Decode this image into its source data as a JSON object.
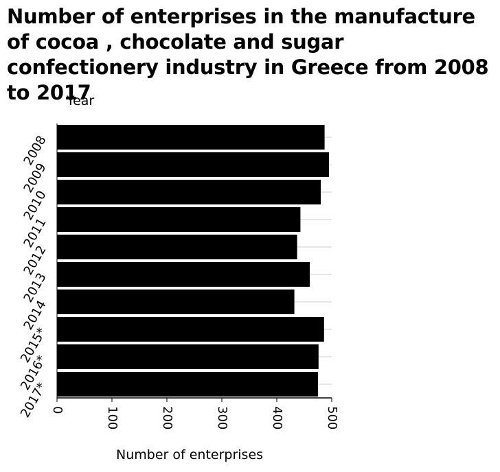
{
  "chart_data": {
    "type": "bar",
    "orientation": "horizontal",
    "title": "Number of enterprises in the manufacture of cocoa , chocolate and sugar confectionery industry in Greece from 2008 to 2017",
    "xlabel": "Number of enterprises",
    "ylabel": "Year",
    "categories": [
      "2008",
      "2009",
      "2010",
      "2011",
      "2012",
      "2013",
      "2014",
      "2015*",
      "2016*",
      "2017*"
    ],
    "values": [
      487,
      495,
      480,
      443,
      437,
      460,
      432,
      486,
      476,
      475
    ],
    "xlim": [
      0,
      500
    ],
    "xticks": [
      0,
      100,
      200,
      300,
      400,
      500
    ],
    "grid": true,
    "bar_color": "#000000",
    "grid_color": "#cccccc"
  }
}
